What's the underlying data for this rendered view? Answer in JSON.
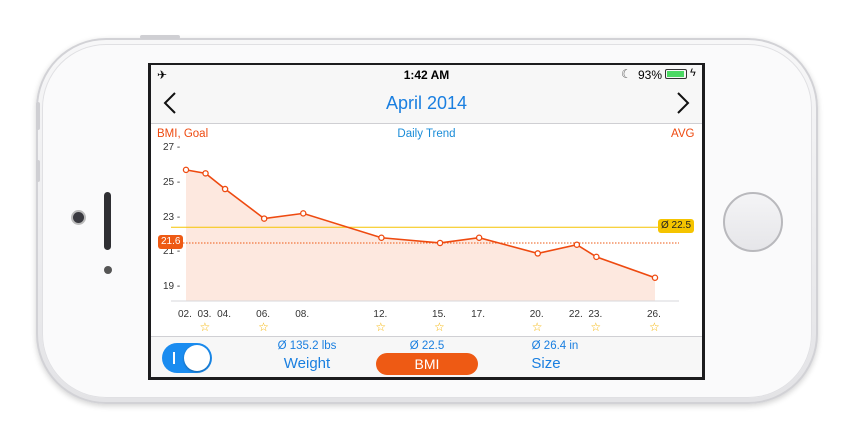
{
  "status_bar": {
    "time": "1:42 AM",
    "battery": "93%",
    "airplane_icon": "airplane-icon",
    "moon_icon": "moon-icon"
  },
  "nav": {
    "title": "April 2014",
    "prev_icon": "chevron-left-icon",
    "next_icon": "chevron-right-icon"
  },
  "chart_header": {
    "left": "BMI, Goal",
    "center": "Daily Trend",
    "right": "AVG"
  },
  "chart_data": {
    "type": "area",
    "title": "Daily Trend",
    "x": [
      "02.",
      "03.",
      "04.",
      "06.",
      "08.",
      "12.",
      "15.",
      "17.",
      "20.",
      "22.",
      "23.",
      "26."
    ],
    "series": [
      {
        "name": "BMI",
        "values": [
          25.8,
          25.6,
          24.7,
          23.0,
          23.3,
          21.9,
          21.6,
          21.9,
          21.0,
          21.5,
          20.8,
          19.6
        ]
      }
    ],
    "y_ticks": [
      "27",
      "25",
      "23",
      "21",
      "19"
    ],
    "ylim": [
      18.2,
      27.0
    ],
    "x_range": [
      2,
      26
    ],
    "goal": {
      "label": "21.6",
      "value": 21.6
    },
    "average": {
      "label": "Ø 22.5",
      "value": 22.5
    },
    "stars": [
      false,
      true,
      false,
      true,
      false,
      true,
      true,
      false,
      true,
      false,
      true,
      true
    ],
    "colors": {
      "line": "#ee4a10",
      "fill": "#fde8df",
      "avg": "#f5c400",
      "goal": "#ee5a14"
    }
  },
  "bottom": {
    "toggle_on": true,
    "weight": {
      "stat": "Ø 135.2 lbs",
      "label": "Weight"
    },
    "bmi": {
      "stat": "Ø 22.5",
      "label": "BMI"
    },
    "size": {
      "stat": "Ø 26.4 in",
      "label": "Size"
    }
  }
}
